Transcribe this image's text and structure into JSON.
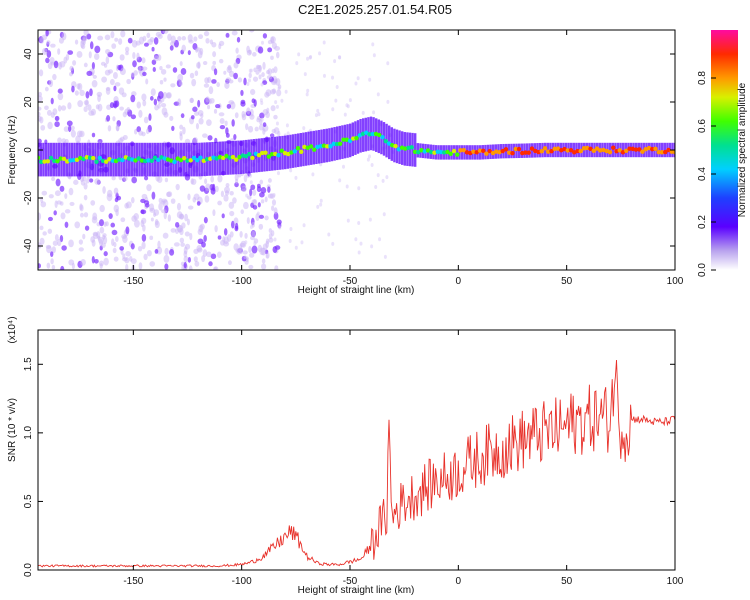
{
  "title": "C2E1.2025.257.01.54.R05",
  "chart_data": [
    {
      "type": "heatmap",
      "name": "spectrogram",
      "xlabel": "Height of straight line (km)",
      "ylabel": "Frequency (Hz)",
      "xlim": [
        -194,
        100
      ],
      "ylim": [
        -50,
        50
      ],
      "xticks": [
        -150,
        -100,
        -50,
        0,
        50,
        100
      ],
      "yticks": [
        -40,
        -20,
        0,
        20,
        40
      ],
      "colorbar": {
        "label": "Normalized spectral amplitude",
        "range": [
          0,
          1
        ],
        "ticks": [
          0.0,
          0.2,
          0.4,
          0.6,
          0.8
        ]
      },
      "ridge": {
        "x": [
          -194,
          -180,
          -160,
          -140,
          -120,
          -110,
          -100,
          -90,
          -80,
          -70,
          -60,
          -50,
          -45,
          -40,
          -35,
          -30,
          -25,
          -20,
          -10,
          0,
          10,
          20,
          30,
          40,
          50,
          60,
          70,
          80,
          90,
          100
        ],
        "y": [
          -4,
          -4,
          -4,
          -4,
          -4,
          -3.5,
          -3,
          -2,
          -1,
          0.5,
          2,
          4,
          6,
          7,
          5,
          2,
          0.5,
          0,
          -1,
          -1,
          -1,
          -0.5,
          -0.3,
          0,
          0,
          0,
          0,
          0,
          0,
          0
        ]
      }
    },
    {
      "type": "line",
      "name": "snr",
      "xlabel": "Height of straight line (km)",
      "ylabel": "SNR (10 * v/v)",
      "yscale_label": "(x10⁴)",
      "xlim": [
        -194,
        100
      ],
      "ylim": [
        0,
        1.75
      ],
      "xticks": [
        -150,
        -100,
        -50,
        0,
        50,
        100
      ],
      "yticks": [
        0.0,
        0.5,
        1.0,
        1.5
      ],
      "color": "#e8312a",
      "series": [
        {
          "name": "SNR",
          "x": [
            -194,
            -180,
            -160,
            -140,
            -120,
            -110,
            -100,
            -95,
            -90,
            -85,
            -80,
            -77,
            -74,
            -70,
            -65,
            -60,
            -55,
            -50,
            -45,
            -40,
            -37,
            -35,
            -33,
            -32,
            -31,
            -30,
            -28,
            -25,
            -20,
            -15,
            -10,
            -5,
            0,
            5,
            10,
            15,
            20,
            25,
            30,
            35,
            40,
            45,
            50,
            55,
            60,
            65,
            70,
            72,
            75,
            78,
            80,
            85,
            90,
            95,
            100
          ],
          "y": [
            0.03,
            0.03,
            0.03,
            0.03,
            0.03,
            0.03,
            0.04,
            0.06,
            0.1,
            0.17,
            0.24,
            0.28,
            0.22,
            0.1,
            0.05,
            0.04,
            0.04,
            0.06,
            0.08,
            0.18,
            0.3,
            0.35,
            0.4,
            1.1,
            0.45,
            0.4,
            0.45,
            0.5,
            0.55,
            0.6,
            0.65,
            0.68,
            0.72,
            0.78,
            0.82,
            0.86,
            0.88,
            0.92,
            0.95,
            0.98,
            1.0,
            1.02,
            1.05,
            1.08,
            1.1,
            1.12,
            1.1,
            1.45,
            1.05,
            1.02,
            1.1,
            1.1,
            1.08,
            1.08,
            1.1
          ]
        }
      ]
    }
  ]
}
